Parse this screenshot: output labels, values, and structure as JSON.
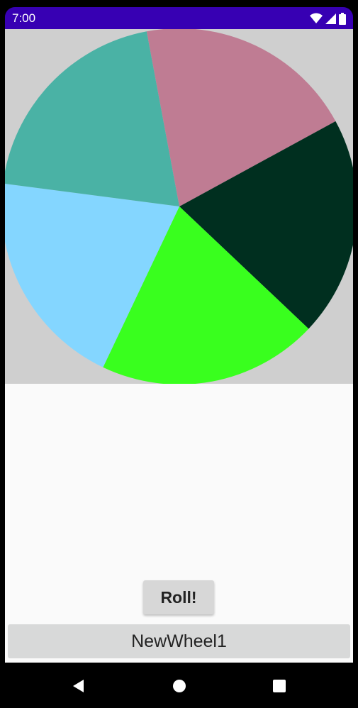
{
  "status_bar": {
    "time": "7:00",
    "background_color": "#3700b3",
    "icons": [
      "wifi-icon",
      "cellular-signal-icon",
      "battery-icon"
    ]
  },
  "wheel": {
    "background_color": "#cfcfcf",
    "segments": [
      {
        "color": "#bf7c93"
      },
      {
        "color": "#002f1f"
      },
      {
        "color": "#39ff1e"
      },
      {
        "color": "#84d6ff"
      },
      {
        "color": "#4ab2a5"
      }
    ]
  },
  "roll_button": {
    "label": "Roll!"
  },
  "wheel_name": {
    "value": "NewWheel1"
  },
  "nav_bar": {
    "icons": [
      "back-icon",
      "home-icon",
      "recents-icon"
    ]
  }
}
